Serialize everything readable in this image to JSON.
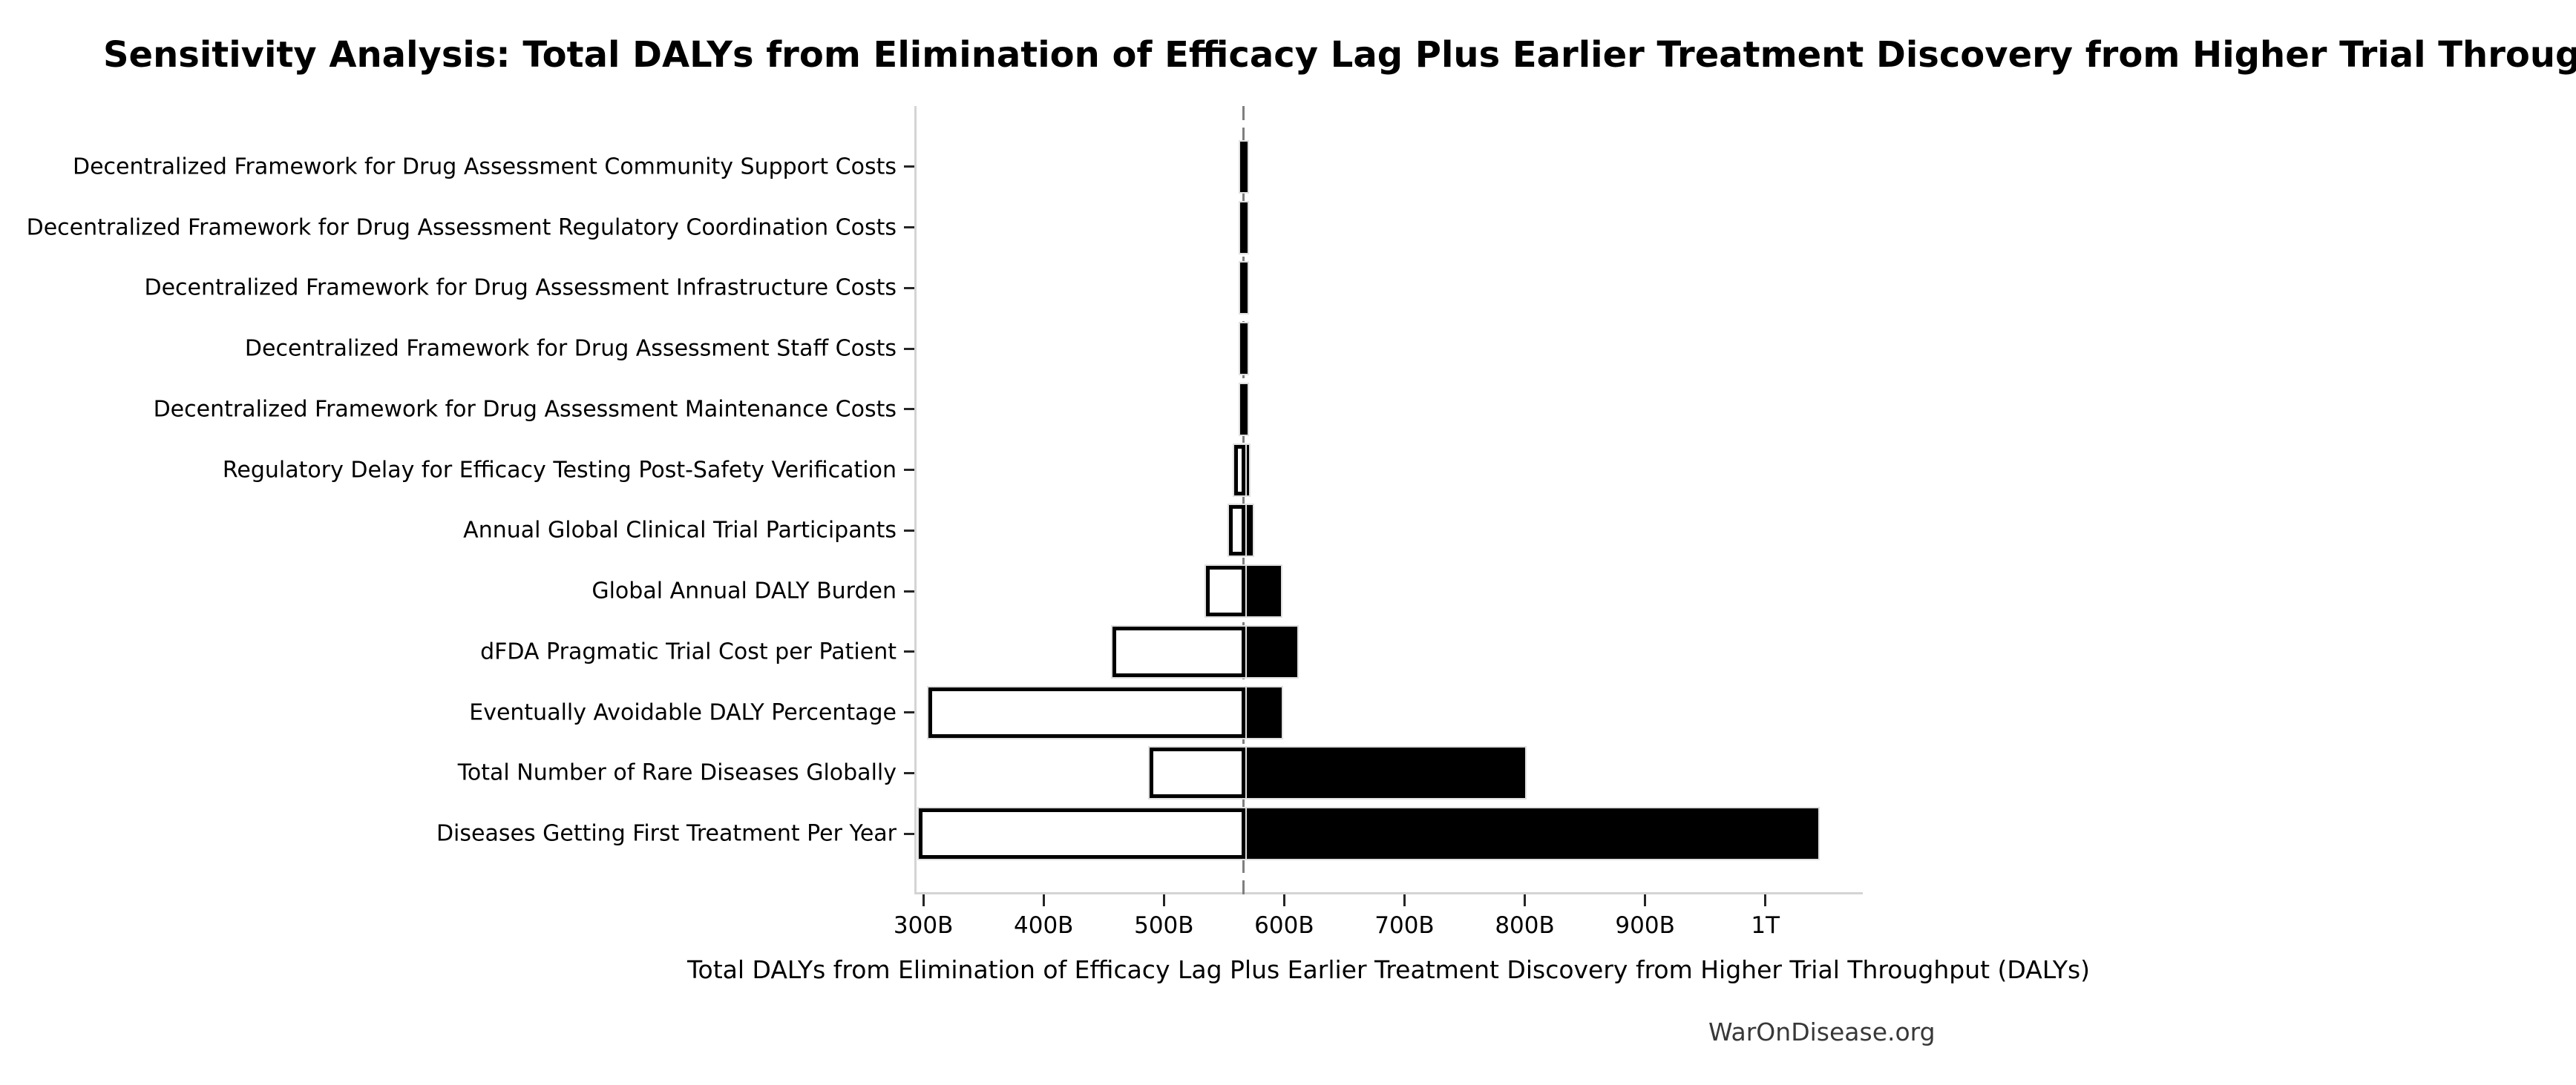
{
  "title": "Sensitivity Analysis: Total DALYs from Elimination of Efficacy Lag Plus Earlier Treatment Discovery from Higher Trial Throughput",
  "watermark": "WarOnDisease.org",
  "colors": {
    "bar_low_fill": "#ffffff",
    "bar_high_fill": "#000000",
    "bar_edge": "#000000",
    "baseline_line": "#7f7f7f",
    "spine": "#d4d4d4",
    "tick_mark": "#262626",
    "watermark_text": "#383838"
  },
  "chart_data": {
    "type": "bar",
    "subtype": "tornado-sensitivity",
    "orientation": "horizontal",
    "units": "DALYs, values in billions (B) / trillions (T)",
    "xlabel": "Total DALYs from Elimination of Efficacy Lag Plus Earlier Treatment Discovery from Higher Trial Throughput (DALYs)",
    "baseline_billions": 566,
    "xlim_billions": [
      292.5,
      1081
    ],
    "x_tick_values_billions": [
      300,
      400,
      500,
      600,
      700,
      800,
      900,
      1000
    ],
    "x_tick_labels": [
      "300B",
      "400B",
      "500B",
      "600B",
      "700B",
      "800B",
      "900B",
      "1T"
    ],
    "grid": false,
    "legend": false,
    "rows": [
      {
        "label": "Decentralized Framework for Drug Assessment Community Support Costs",
        "low_billions": 565.5,
        "high_billions": 566.5
      },
      {
        "label": "Decentralized Framework for Drug Assessment Regulatory Coordination Costs",
        "low_billions": 565.5,
        "high_billions": 566.5
      },
      {
        "label": "Decentralized Framework for Drug Assessment Infrastructure Costs",
        "low_billions": 565.5,
        "high_billions": 566.5
      },
      {
        "label": "Decentralized Framework for Drug Assessment Staff Costs",
        "low_billions": 565.5,
        "high_billions": 566.5
      },
      {
        "label": "Decentralized Framework for Drug Assessment Maintenance Costs",
        "low_billions": 565.5,
        "high_billions": 566.5
      },
      {
        "label": "Regulatory Delay for Efficacy Testing Post-Safety Verification",
        "low_billions": 560,
        "high_billions": 571
      },
      {
        "label": "Annual Global Clinical Trial Participants",
        "low_billions": 556,
        "high_billions": 574
      },
      {
        "label": "Global Annual DALY Burden",
        "low_billions": 537,
        "high_billions": 597
      },
      {
        "label": "dFDA Pragmatic Trial Cost per Patient",
        "low_billions": 459,
        "high_billions": 611
      },
      {
        "label": "Eventually Avoidable DALY Percentage",
        "low_billions": 306,
        "high_billions": 598
      },
      {
        "label": "Total Number of Rare Diseases Globally",
        "low_billions": 490,
        "high_billions": 800
      },
      {
        "label": "Diseases Getting First Treatment Per Year",
        "low_billions": 298,
        "high_billions": 1044
      }
    ]
  }
}
